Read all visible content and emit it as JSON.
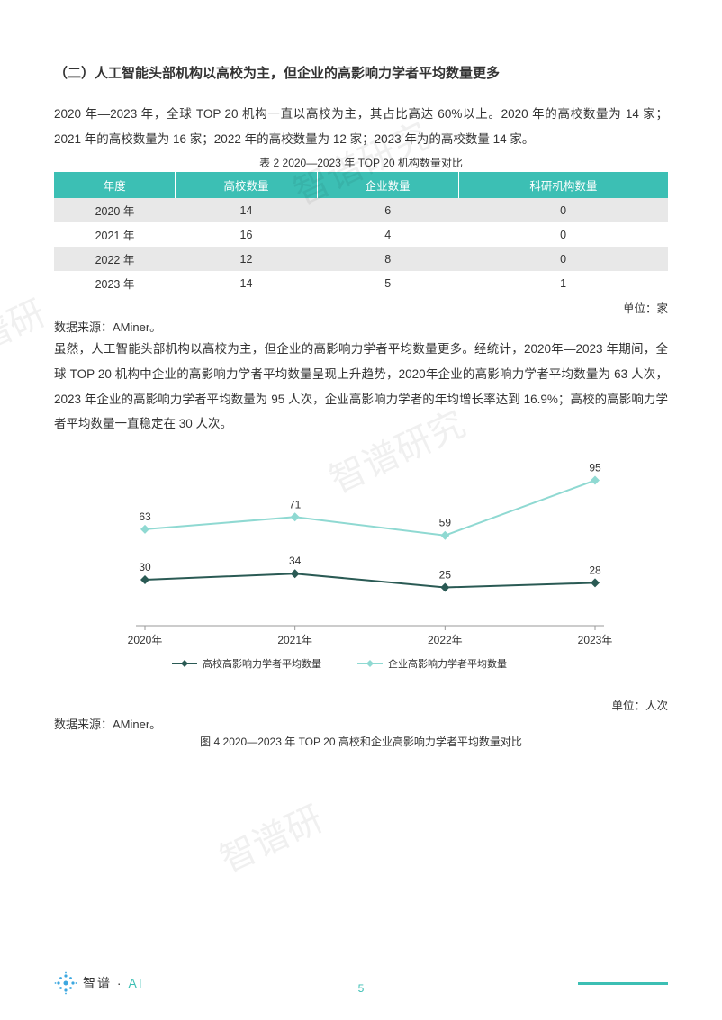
{
  "section_title": "（二）人工智能头部机构以高校为主，但企业的高影响力学者平均数量更多",
  "para1": "2020 年—2023 年，全球 TOP 20 机构一直以高校为主，其占比高达 60%以上。2020 年的高校数量为 14 家；2021 年的高校数量为 16 家；2022 年的高校数量为 12 家；2023 年为的高校数量 14 家。",
  "table": {
    "caption": "表 2 2020—2023 年 TOP 20 机构数量对比",
    "columns": [
      "年度",
      "高校数量",
      "企业数量",
      "科研机构数量"
    ],
    "rows": [
      [
        "2020 年",
        "14",
        "6",
        "0"
      ],
      [
        "2021 年",
        "16",
        "4",
        "0"
      ],
      [
        "2022 年",
        "12",
        "8",
        "0"
      ],
      [
        "2023 年",
        "14",
        "5",
        "1"
      ]
    ],
    "header_bg": "#3cbfb4",
    "header_color": "#ffffff",
    "row_odd_bg": "#e8e8e8",
    "row_even_bg": "#ffffff",
    "unit": "单位：家"
  },
  "source_label": "数据来源：AMiner。",
  "para2": "虽然，人工智能头部机构以高校为主，但企业的高影响力学者平均数量更多。经统计，2020年—2023 年期间，全球 TOP 20 机构中企业的高影响力学者平均数量呈现上升趋势，2020年企业的高影响力学者平均数量为 63 人次，2023 年企业的高影响力学者平均数量为 95 人次，企业高影响力学者的年均增长率达到 16.9%；高校的高影响力学者平均数量一直稳定在 30 人次。",
  "chart": {
    "type": "line",
    "categories": [
      "2020年",
      "2021年",
      "2022年",
      "2023年"
    ],
    "series": [
      {
        "name": "高校高影响力学者平均数量",
        "values": [
          30,
          34,
          25,
          28
        ],
        "color": "#2a5a54",
        "marker": "diamond"
      },
      {
        "name": "企业高影响力学者平均数量",
        "values": [
          63,
          71,
          59,
          95
        ],
        "color": "#8fd9d2",
        "marker": "diamond"
      }
    ],
    "ylim": [
      0,
      100
    ],
    "label_fontsize": 12,
    "line_width": 2,
    "marker_size": 5,
    "background_color": "#ffffff",
    "axis_color": "#999999",
    "text_color": "#333333",
    "unit": "单位：人次",
    "source": "数据来源：AMiner。",
    "caption": "图 4 2020—2023 年 TOP 20 高校和企业高影响力学者平均数量对比"
  },
  "footer": {
    "brand_cn": "智谱",
    "brand_en": "AI",
    "page_number": "5",
    "logo_color": "#3ca7e0",
    "accent_color": "#3cbfb4"
  },
  "watermarks": [
    "智谱研究",
    "智谱研究",
    "智谱研",
    "谱研"
  ]
}
